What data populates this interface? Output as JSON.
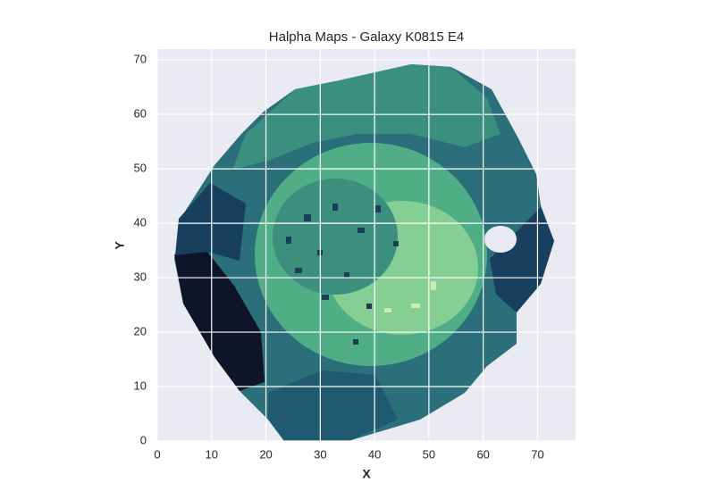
{
  "chart_data": {
    "type": "image",
    "title": "Halpha Maps - Galaxy K0815 E4",
    "x_label": "X",
    "y_label": "Y",
    "xlim": [
      0,
      77
    ],
    "ylim": [
      0,
      72
    ],
    "xticks": [
      0,
      10,
      20,
      30,
      40,
      50,
      60,
      70
    ],
    "yticks": [
      0,
      10,
      20,
      30,
      40,
      50,
      60,
      70
    ],
    "grid": true,
    "background": "#eaeaf2",
    "grid_color": "#ffffff"
  }
}
